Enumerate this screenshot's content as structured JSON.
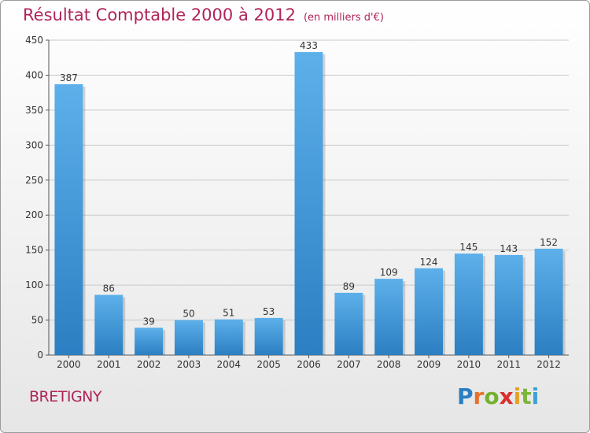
{
  "chart_data": {
    "type": "bar",
    "title": "Résultat Comptable 2000 à 2012",
    "subtitle": "(en milliers d'€)",
    "categories": [
      "2000",
      "2001",
      "2002",
      "2003",
      "2004",
      "2005",
      "2006",
      "2007",
      "2008",
      "2009",
      "2010",
      "2011",
      "2012"
    ],
    "values": [
      387,
      86,
      39,
      50,
      51,
      53,
      433,
      89,
      109,
      124,
      145,
      143,
      152
    ],
    "ylim": [
      0,
      450
    ],
    "yticks": [
      0,
      50,
      100,
      150,
      200,
      250,
      300,
      350,
      400,
      450
    ],
    "xlabel": "",
    "ylabel": "",
    "grid": true,
    "bar_color": "#3d94d6"
  },
  "commune": "BRETIGNY",
  "logo": {
    "p": "P",
    "r": "r",
    "o": "o",
    "x": "x",
    "i1": "i",
    "t": "t",
    "i2": "i"
  }
}
